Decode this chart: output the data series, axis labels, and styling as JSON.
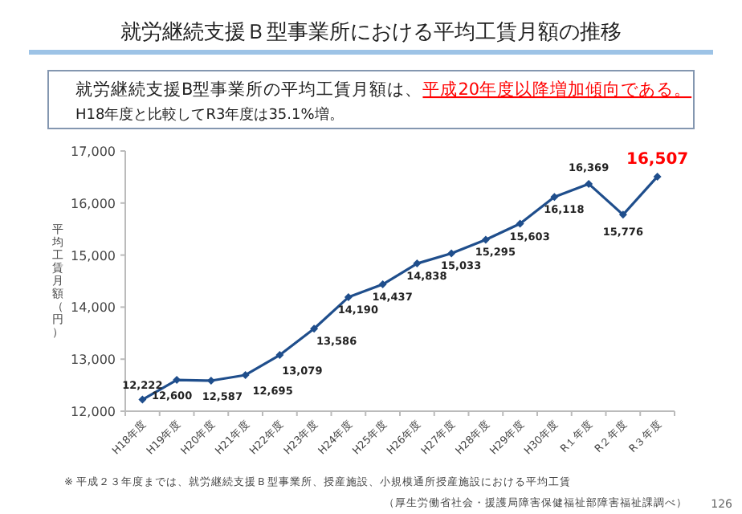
{
  "chart_data": {
    "type": "line",
    "title": "就労継続支援Ｂ型事業所における平均工賃月額の推移",
    "categories": [
      "H18年度",
      "H19年度",
      "H20年度",
      "H21年度",
      "H22年度",
      "H23年度",
      "H24年度",
      "H25年度",
      "H26年度",
      "H27年度",
      "H28年度",
      "H29年度",
      "H30年度",
      "R１年度",
      "R２年度",
      "R３年度"
    ],
    "series": [
      {
        "color": "#1f4e8c",
        "values": [
          12222,
          12600,
          12587,
          12695,
          13079,
          13586,
          14190,
          14437,
          14838,
          15033,
          15295,
          15603,
          16118,
          16369,
          15776,
          16507
        ],
        "value_labels": [
          "12,222",
          "12,600",
          "12,587",
          "12,695",
          "13,079",
          "13,586",
          "14,190",
          "14,437",
          "14,838",
          "15,033",
          "15,295",
          "15,603",
          "16,118",
          "16,369",
          "15,776",
          "16,507"
        ]
      }
    ],
    "ylabel": "平均工賃月額（円）",
    "ylim": [
      12000,
      17000
    ],
    "yticks": [
      {
        "value": 12000,
        "label": "12,000"
      },
      {
        "value": 13000,
        "label": "13,000"
      },
      {
        "value": 14000,
        "label": "14,000"
      },
      {
        "value": 15000,
        "label": "15,000"
      },
      {
        "value": 16000,
        "label": "16,000"
      },
      {
        "value": 17000,
        "label": "17,000"
      }
    ],
    "marker": "diamond",
    "grid": false,
    "annotations": [
      "就労継続支援B型事業所の平均工賃月額は、",
      "平成20年度以降増加傾向である。",
      "H18年度と比較してR3年度は35.1%増。",
      "※ 平成２３年度までは、就労継続支援Ｂ型事業所、授産施設、小規模通所授産施設における平均工賃",
      "（厚生労働省社会・援護局障害保健福祉部障害福祉課調べ）",
      "126"
    ]
  }
}
